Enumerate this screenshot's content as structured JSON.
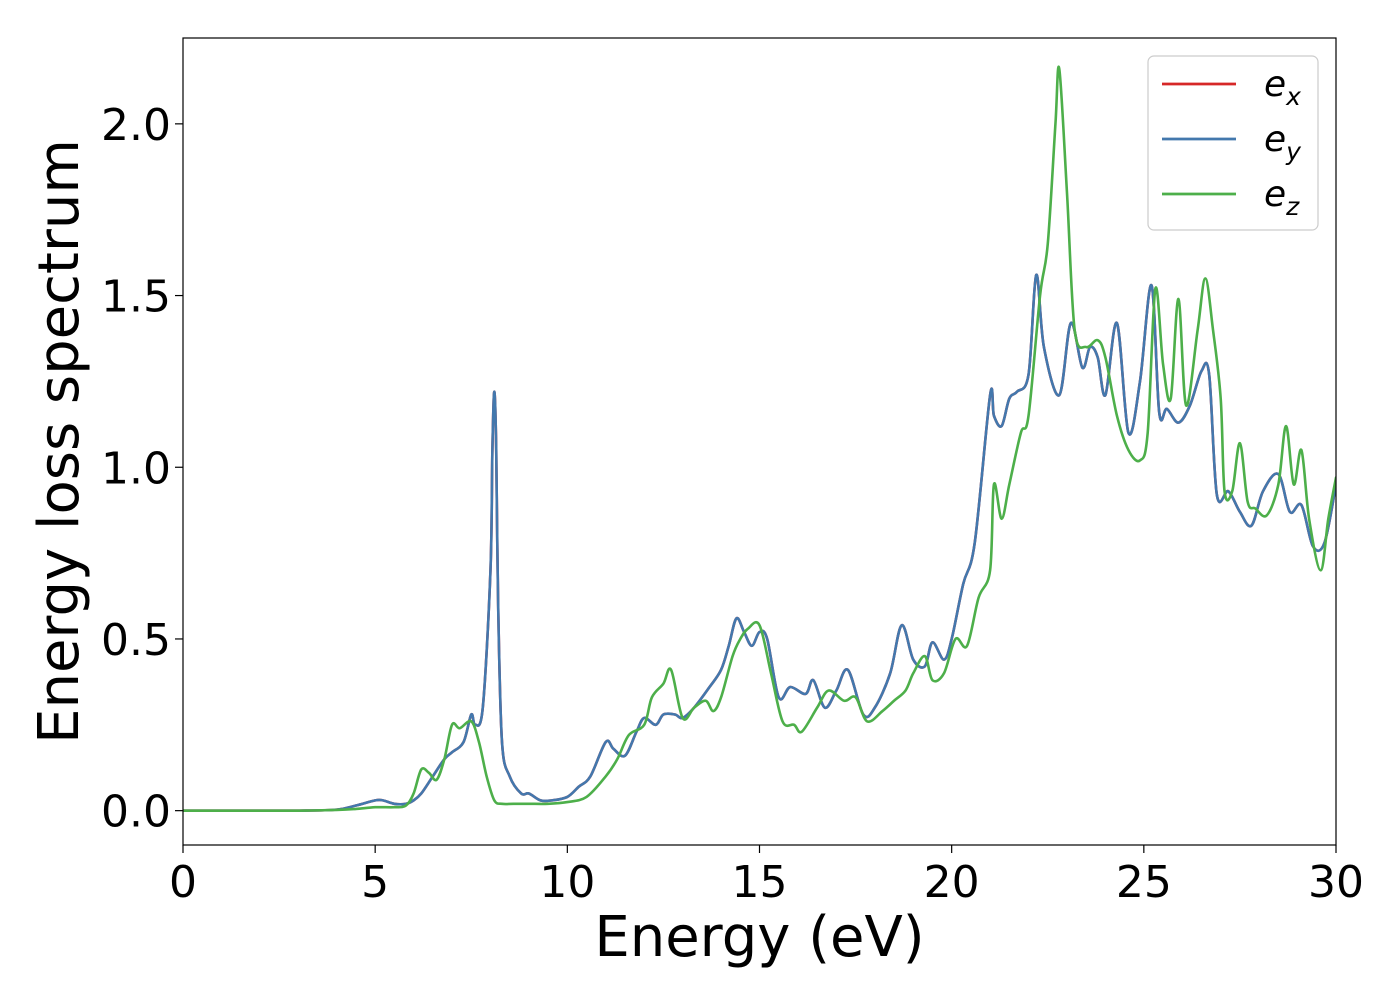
{
  "chart_data": {
    "type": "line",
    "xlabel": "Energy (eV)",
    "ylabel": "Energy loss spectrum",
    "xlim": [
      0,
      30
    ],
    "ylim": [
      -0.1,
      2.25
    ],
    "xticks": [
      0,
      5,
      10,
      15,
      20,
      25,
      30
    ],
    "xtick_labels": [
      "0",
      "5",
      "10",
      "15",
      "20",
      "25",
      "30"
    ],
    "yticks": [
      0.0,
      0.5,
      1.0,
      1.5,
      2.0
    ],
    "ytick_labels": [
      "0.0",
      "0.5",
      "1.0",
      "1.5",
      "2.0"
    ],
    "grid": false,
    "legend_position": "top-right",
    "series": [
      {
        "name": "e_x",
        "label_base": "e",
        "label_sub": "x",
        "color": "#d62728",
        "x": [
          0,
          1,
          2,
          3,
          4,
          4.5,
          5,
          5.2,
          5.5,
          5.8,
          6,
          6.2,
          6.5,
          6.8,
          7,
          7.3,
          7.5,
          7.6,
          7.8,
          8,
          8.05,
          8.1,
          8.15,
          8.2,
          8.3,
          8.5,
          8.8,
          9,
          9.3,
          9.6,
          10,
          10.3,
          10.6,
          11,
          11.2,
          11.5,
          11.8,
          12,
          12.3,
          12.5,
          12.8,
          13,
          13.3,
          13.7,
          14,
          14.2,
          14.4,
          14.6,
          14.8,
          15,
          15.2,
          15.5,
          15.8,
          16.2,
          16.4,
          16.7,
          17,
          17.3,
          17.7,
          18,
          18.4,
          18.7,
          19,
          19.3,
          19.5,
          19.8,
          20,
          20.3,
          20.6,
          21,
          21.1,
          21.3,
          21.5,
          21.7,
          22,
          22.2,
          22.4,
          22.8,
          23.1,
          23.4,
          23.6,
          23.8,
          24,
          24.3,
          24.6,
          24.9,
          25.2,
          25.4,
          25.6,
          25.9,
          26.2,
          26.5,
          26.7,
          26.9,
          27.2,
          27.5,
          27.8,
          28.1,
          28.5,
          28.8,
          29.1,
          29.4,
          29.7,
          30
        ],
        "y": [
          0,
          0,
          0,
          0,
          0.003,
          0.015,
          0.03,
          0.03,
          0.02,
          0.02,
          0.03,
          0.05,
          0.1,
          0.15,
          0.17,
          0.2,
          0.28,
          0.25,
          0.3,
          0.7,
          1.05,
          1.22,
          1.05,
          0.6,
          0.2,
          0.1,
          0.05,
          0.05,
          0.03,
          0.03,
          0.04,
          0.07,
          0.1,
          0.2,
          0.18,
          0.16,
          0.23,
          0.27,
          0.25,
          0.28,
          0.28,
          0.27,
          0.3,
          0.36,
          0.41,
          0.48,
          0.56,
          0.52,
          0.48,
          0.52,
          0.5,
          0.33,
          0.36,
          0.34,
          0.38,
          0.3,
          0.35,
          0.41,
          0.28,
          0.3,
          0.4,
          0.54,
          0.44,
          0.42,
          0.49,
          0.44,
          0.5,
          0.66,
          0.78,
          1.21,
          1.15,
          1.12,
          1.2,
          1.22,
          1.27,
          1.56,
          1.35,
          1.21,
          1.42,
          1.29,
          1.35,
          1.32,
          1.21,
          1.42,
          1.1,
          1.25,
          1.53,
          1.16,
          1.17,
          1.13,
          1.18,
          1.28,
          1.27,
          0.92,
          0.93,
          0.87,
          0.83,
          0.93,
          0.98,
          0.87,
          0.89,
          0.77,
          0.78,
          0.95
        ]
      },
      {
        "name": "e_y",
        "label_base": "e",
        "label_sub": "y",
        "color": "#4378ad",
        "x": [
          0,
          1,
          2,
          3,
          4,
          4.5,
          5,
          5.2,
          5.5,
          5.8,
          6,
          6.2,
          6.5,
          6.8,
          7,
          7.3,
          7.5,
          7.6,
          7.8,
          8,
          8.05,
          8.1,
          8.15,
          8.2,
          8.3,
          8.5,
          8.8,
          9,
          9.3,
          9.6,
          10,
          10.3,
          10.6,
          11,
          11.2,
          11.5,
          11.8,
          12,
          12.3,
          12.5,
          12.8,
          13,
          13.3,
          13.7,
          14,
          14.2,
          14.4,
          14.6,
          14.8,
          15,
          15.2,
          15.5,
          15.8,
          16.2,
          16.4,
          16.7,
          17,
          17.3,
          17.7,
          18,
          18.4,
          18.7,
          19,
          19.3,
          19.5,
          19.8,
          20,
          20.3,
          20.6,
          21,
          21.1,
          21.3,
          21.5,
          21.7,
          22,
          22.2,
          22.4,
          22.8,
          23.1,
          23.4,
          23.6,
          23.8,
          24,
          24.3,
          24.6,
          24.9,
          25.2,
          25.4,
          25.6,
          25.9,
          26.2,
          26.5,
          26.7,
          26.9,
          27.2,
          27.5,
          27.8,
          28.1,
          28.5,
          28.8,
          29.1,
          29.4,
          29.7,
          30
        ],
        "y": [
          0,
          0,
          0,
          0,
          0.003,
          0.015,
          0.03,
          0.03,
          0.02,
          0.02,
          0.03,
          0.05,
          0.1,
          0.15,
          0.17,
          0.2,
          0.28,
          0.25,
          0.3,
          0.7,
          1.05,
          1.22,
          1.05,
          0.6,
          0.2,
          0.1,
          0.05,
          0.05,
          0.03,
          0.03,
          0.04,
          0.07,
          0.1,
          0.2,
          0.18,
          0.16,
          0.23,
          0.27,
          0.25,
          0.28,
          0.28,
          0.27,
          0.3,
          0.36,
          0.41,
          0.48,
          0.56,
          0.52,
          0.48,
          0.52,
          0.5,
          0.33,
          0.36,
          0.34,
          0.38,
          0.3,
          0.35,
          0.41,
          0.28,
          0.3,
          0.4,
          0.54,
          0.44,
          0.42,
          0.49,
          0.44,
          0.5,
          0.66,
          0.78,
          1.21,
          1.15,
          1.12,
          1.2,
          1.22,
          1.27,
          1.56,
          1.35,
          1.21,
          1.42,
          1.29,
          1.35,
          1.32,
          1.21,
          1.42,
          1.1,
          1.25,
          1.53,
          1.16,
          1.17,
          1.13,
          1.18,
          1.28,
          1.27,
          0.92,
          0.93,
          0.87,
          0.83,
          0.93,
          0.98,
          0.87,
          0.89,
          0.77,
          0.78,
          0.95
        ]
      },
      {
        "name": "e_z",
        "label_base": "e",
        "label_sub": "z",
        "color": "#4daf4a",
        "x": [
          0,
          1,
          2,
          3,
          4,
          4.5,
          5,
          5.5,
          5.8,
          6,
          6.2,
          6.4,
          6.6,
          6.8,
          7,
          7.2,
          7.5,
          7.7,
          7.9,
          8.1,
          8.3,
          8.6,
          9,
          9.5,
          10,
          10.5,
          11,
          11.3,
          11.6,
          12,
          12.2,
          12.5,
          12.7,
          13,
          13.3,
          13.6,
          13.8,
          14,
          14.3,
          14.5,
          14.7,
          15,
          15.3,
          15.6,
          15.9,
          16.1,
          16.5,
          16.8,
          17.2,
          17.5,
          17.8,
          18.2,
          18.5,
          18.8,
          19,
          19.3,
          19.5,
          19.8,
          20.1,
          20.4,
          20.7,
          21,
          21.1,
          21.3,
          21.5,
          21.8,
          22,
          22.3,
          22.5,
          22.7,
          22.8,
          23,
          23.2,
          23.5,
          23.8,
          24,
          24.3,
          24.6,
          24.9,
          25.1,
          25.3,
          25.5,
          25.7,
          25.9,
          26.1,
          26.4,
          26.6,
          26.8,
          27,
          27.1,
          27.3,
          27.5,
          27.7,
          27.9,
          28.2,
          28.5,
          28.7,
          28.9,
          29.1,
          29.3,
          29.6,
          29.8,
          30
        ],
        "y": [
          0,
          0,
          0,
          0,
          0.002,
          0.005,
          0.01,
          0.01,
          0.015,
          0.05,
          0.12,
          0.11,
          0.09,
          0.15,
          0.25,
          0.24,
          0.26,
          0.2,
          0.1,
          0.03,
          0.02,
          0.02,
          0.02,
          0.02,
          0.025,
          0.04,
          0.1,
          0.15,
          0.22,
          0.25,
          0.33,
          0.37,
          0.41,
          0.27,
          0.3,
          0.32,
          0.29,
          0.33,
          0.45,
          0.5,
          0.53,
          0.54,
          0.4,
          0.26,
          0.25,
          0.23,
          0.3,
          0.35,
          0.32,
          0.33,
          0.26,
          0.29,
          0.32,
          0.35,
          0.4,
          0.45,
          0.38,
          0.4,
          0.5,
          0.48,
          0.62,
          0.7,
          0.95,
          0.85,
          0.95,
          1.1,
          1.15,
          1.5,
          1.65,
          2.0,
          2.16,
          1.8,
          1.4,
          1.35,
          1.37,
          1.32,
          1.15,
          1.05,
          1.02,
          1.1,
          1.52,
          1.3,
          1.2,
          1.49,
          1.18,
          1.4,
          1.55,
          1.4,
          1.2,
          0.93,
          0.93,
          1.07,
          0.9,
          0.88,
          0.86,
          0.95,
          1.12,
          0.95,
          1.05,
          0.85,
          0.7,
          0.85,
          0.97
        ]
      }
    ]
  }
}
